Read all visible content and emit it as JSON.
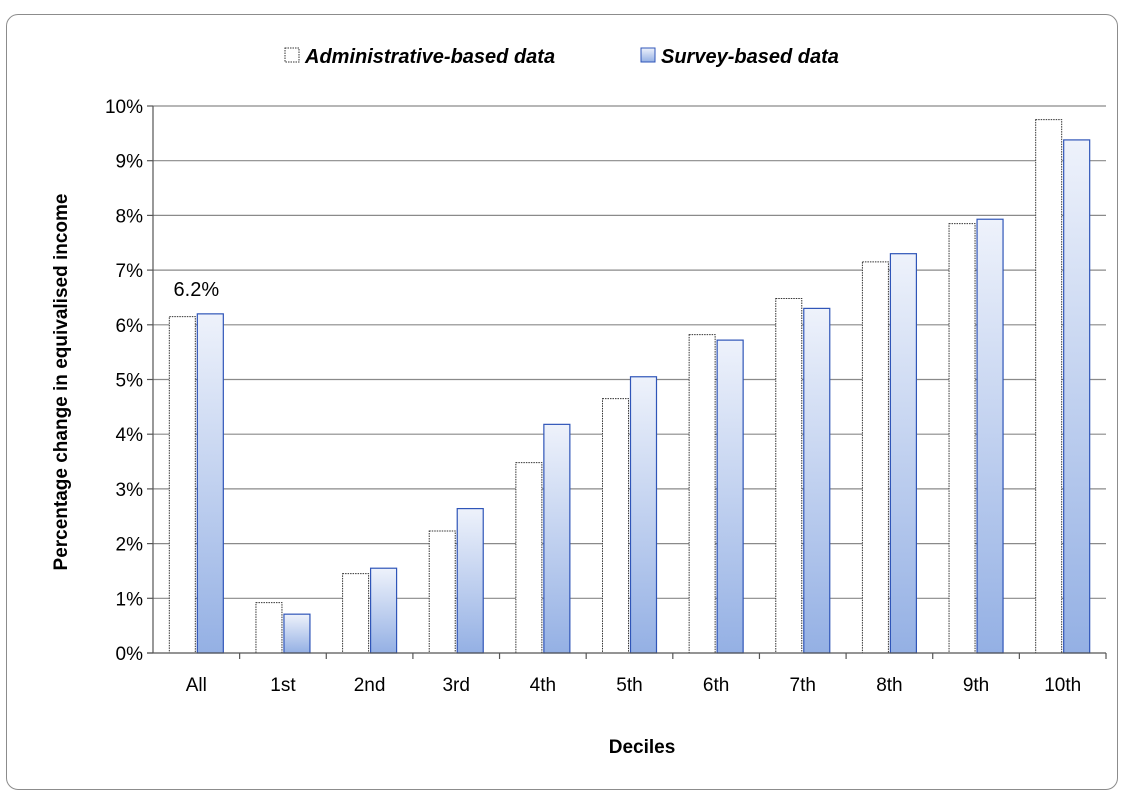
{
  "chart_data": {
    "type": "bar",
    "title": "",
    "xlabel": "Deciles",
    "ylabel": "Percentage change  in equivalised  income",
    "categories": [
      "All",
      "1st",
      "2nd",
      "3rd",
      "4th",
      "5th",
      "6th",
      "7th",
      "8th",
      "9th",
      "10th"
    ],
    "series": [
      {
        "name": "Administrative-based  data",
        "values": [
          6.15,
          0.92,
          1.45,
          2.23,
          3.48,
          4.65,
          5.82,
          6.48,
          7.15,
          7.85,
          9.75
        ]
      },
      {
        "name": "Survey-based data",
        "values": [
          6.2,
          0.71,
          1.55,
          2.64,
          4.18,
          5.05,
          5.72,
          6.3,
          7.3,
          7.93,
          9.38
        ]
      }
    ],
    "ylim": [
      0,
      10
    ],
    "yticks": [
      0,
      1,
      2,
      3,
      4,
      5,
      6,
      7,
      8,
      9,
      10
    ],
    "ytick_suffix": "%",
    "grid": true,
    "legend_position": "top",
    "annotations": [
      {
        "category": "All",
        "text": "6.2%"
      }
    ],
    "colors": {
      "admin_fill": "#ffffff",
      "admin_stroke": "#333333",
      "survey_top": "#eef2fb",
      "survey_bottom": "#94b0e4",
      "survey_stroke": "#2f55b8",
      "grid": "#8a8a8a"
    }
  }
}
